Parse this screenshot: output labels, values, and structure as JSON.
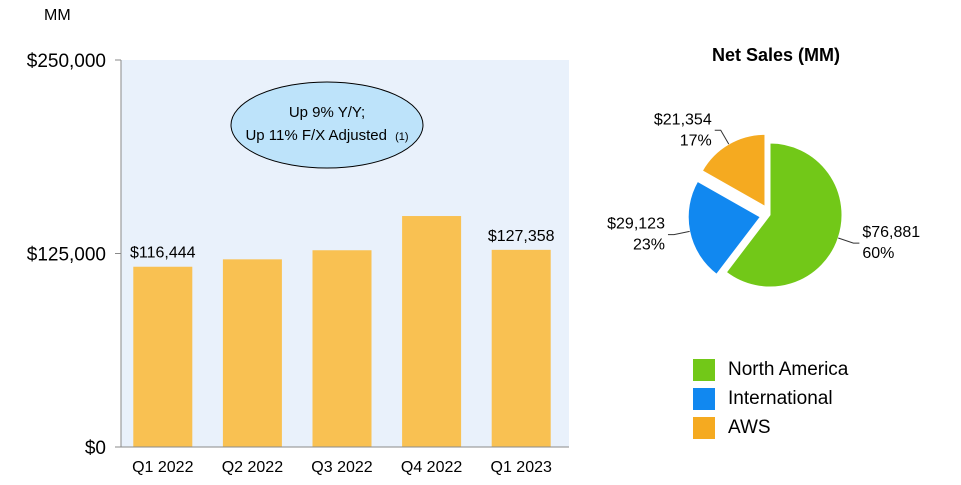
{
  "bar_chart": {
    "unit_label": "MM",
    "callout": {
      "line1": "Up 9% Y/Y;",
      "line2": "Up 11% F/X Adjusted",
      "footnote": "(1)"
    },
    "colors": {
      "bar": "#f9c152",
      "plot_bg": "#e9f1fb",
      "callout_fill": "#bde3fa"
    }
  },
  "pie_chart": {
    "title": "Net Sales (MM)",
    "colors": {
      "North America": "#72c818",
      "International": "#1188f0",
      "AWS": "#f5aa20"
    }
  },
  "chart_data": [
    {
      "type": "bar",
      "title": "",
      "categories": [
        "Q1 2022",
        "Q2 2022",
        "Q3 2022",
        "Q4 2022",
        "Q1 2023"
      ],
      "values": [
        116444,
        121234,
        127101,
        149204,
        127358
      ],
      "data_labels": [
        "$116,444",
        "",
        "",
        "",
        "$127,358"
      ],
      "y_ticks": [
        "$0",
        "$125,000",
        "$250,000"
      ],
      "y_tick_values": [
        0,
        125000,
        250000
      ],
      "ylim": [
        0,
        250000
      ],
      "xlabel": "",
      "ylabel": "MM"
    },
    {
      "type": "pie",
      "title": "Net Sales (MM)",
      "labels": [
        "North America",
        "International",
        "AWS"
      ],
      "values": [
        76881,
        29123,
        21354
      ],
      "value_labels": [
        "$76,881",
        "$29,123",
        "$21,354"
      ],
      "percent_labels": [
        "60%",
        "23%",
        "17%"
      ],
      "legend": "bottom"
    }
  ]
}
